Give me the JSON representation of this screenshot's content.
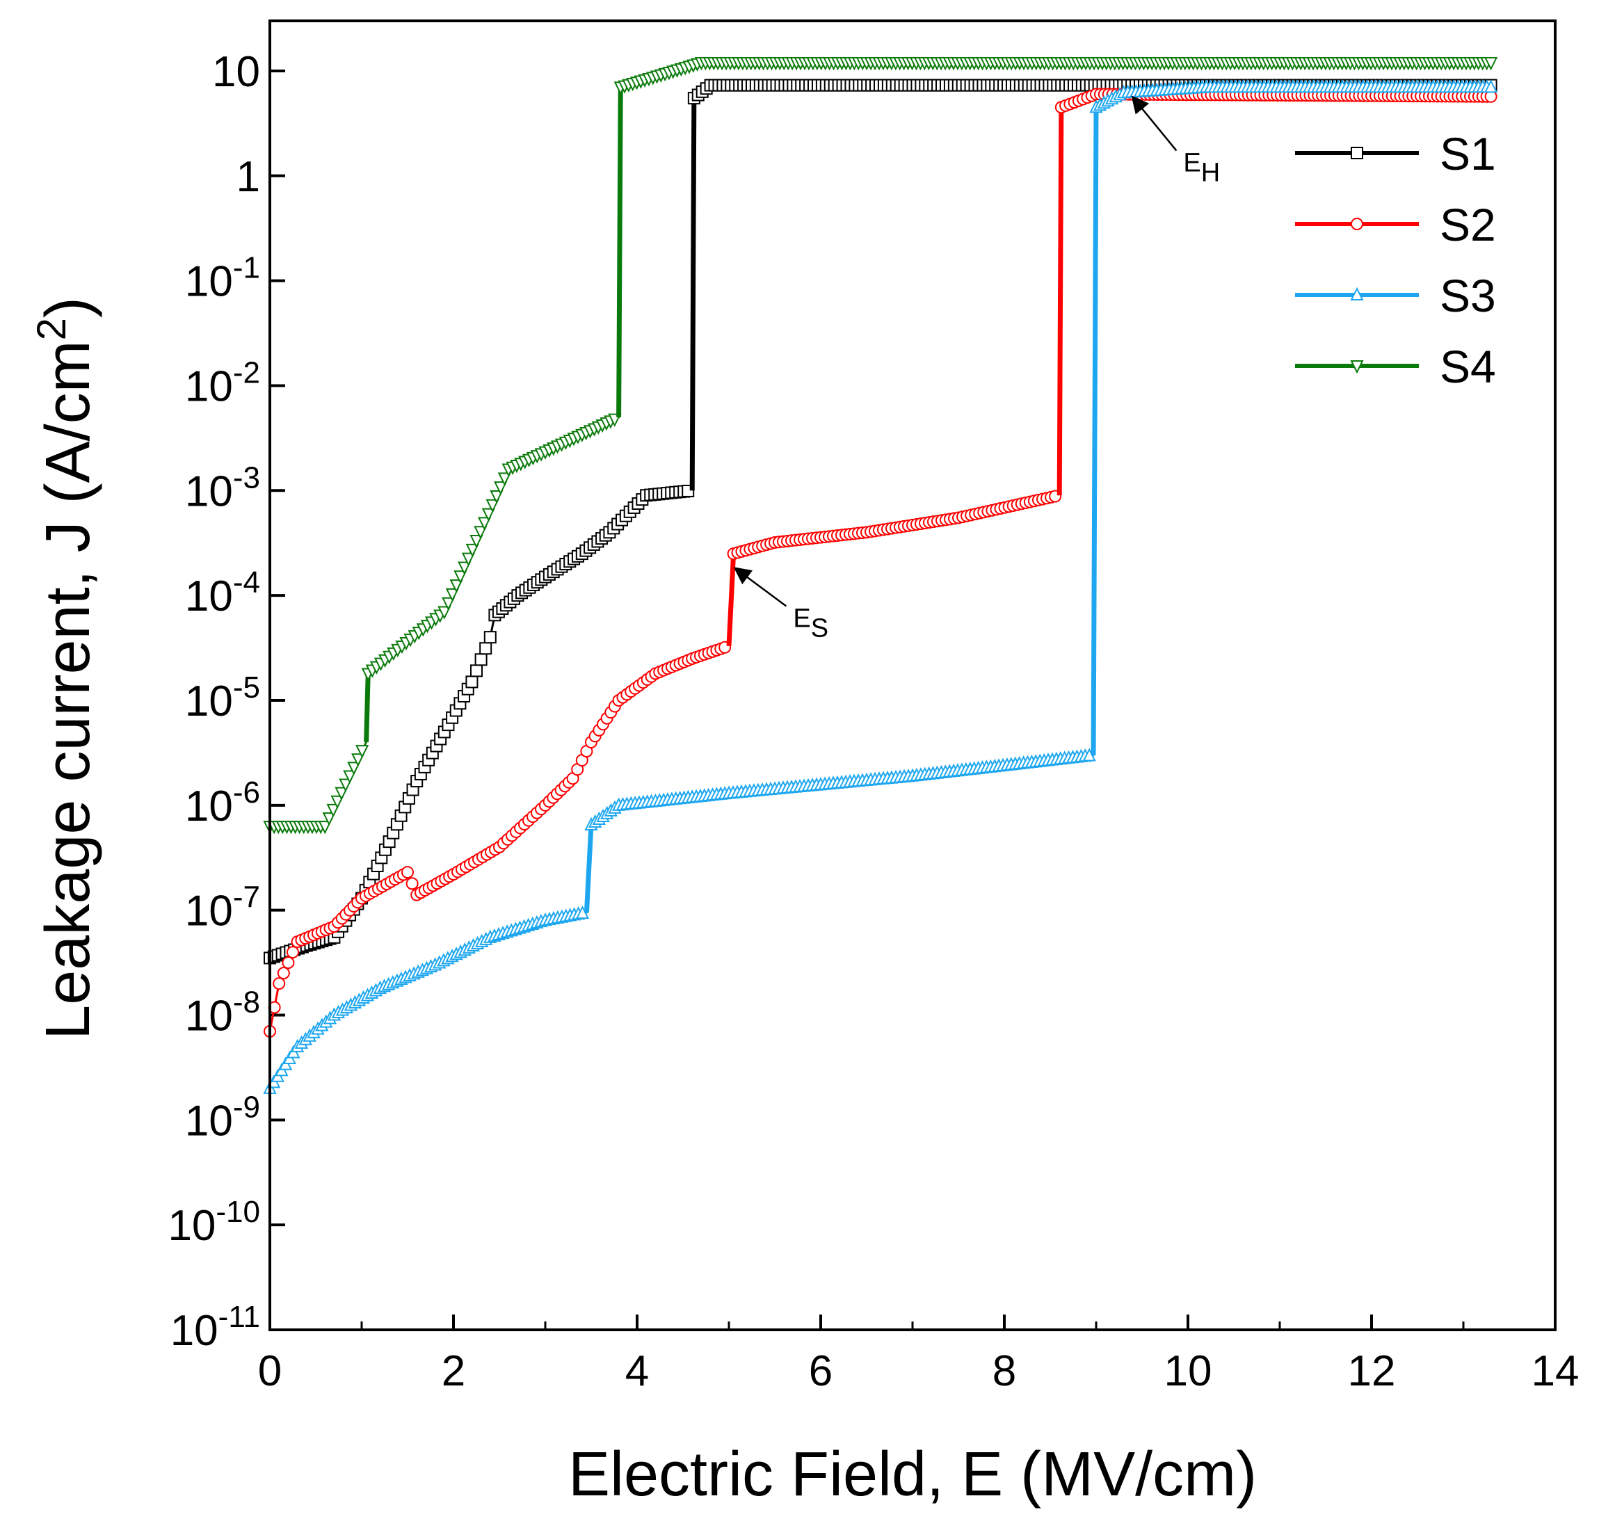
{
  "chart_data": {
    "type": "line",
    "title": "",
    "xlabel": "Electric Field, E (MV/cm)",
    "ylabel_prefix": "Leakage current, J (A/cm",
    "ylabel_sup": "2",
    "ylabel_suffix": ")",
    "xlim": [
      0,
      14
    ],
    "ylim": [
      1e-11,
      30
    ],
    "yscale": "log",
    "x_ticks": [
      0,
      2,
      4,
      6,
      8,
      10,
      12,
      14
    ],
    "x_tick_labels": [
      "0",
      "2",
      "4",
      "6",
      "8",
      "10",
      "12",
      "14"
    ],
    "y_ticks": [
      {
        "value": 10,
        "base": "10",
        "exp": ""
      },
      {
        "value": 1,
        "base": "1",
        "exp": ""
      },
      {
        "value": 0.1,
        "base": "10",
        "exp": "-1"
      },
      {
        "value": 0.01,
        "base": "10",
        "exp": "-2"
      },
      {
        "value": 0.001,
        "base": "10",
        "exp": "-3"
      },
      {
        "value": 0.0001,
        "base": "10",
        "exp": "-4"
      },
      {
        "value": 1e-05,
        "base": "10",
        "exp": "-5"
      },
      {
        "value": 1e-06,
        "base": "10",
        "exp": "-6"
      },
      {
        "value": 1e-07,
        "base": "10",
        "exp": "-7"
      },
      {
        "value": 1e-08,
        "base": "10",
        "exp": "-8"
      },
      {
        "value": 1e-09,
        "base": "10",
        "exp": "-9"
      },
      {
        "value": 1e-10,
        "base": "10",
        "exp": "-10"
      },
      {
        "value": 1e-11,
        "base": "10",
        "exp": "-11"
      }
    ],
    "legend_position": "top-right",
    "series": [
      {
        "name": "S1",
        "color": "#000000",
        "marker": "square",
        "points": [
          [
            0,
            3.5e-08
          ],
          [
            0.4,
            4.6e-08
          ],
          [
            0.7,
            5.5e-08
          ],
          [
            1.0,
            1.3e-07
          ],
          [
            1.3,
            4.5e-07
          ],
          [
            1.6,
            1.7e-06
          ],
          [
            1.9,
            5e-06
          ],
          [
            2.2,
            1.5e-05
          ],
          [
            2.4,
            4e-05
          ],
          [
            2.45,
            6.5e-05
          ],
          [
            2.7,
            0.0001
          ],
          [
            3.0,
            0.00015
          ],
          [
            3.4,
            0.00025
          ],
          [
            3.7,
            0.0004
          ],
          [
            4.1,
            0.0009
          ],
          [
            4.6,
            0.001
          ],
          [
            4.62,
            5.5
          ],
          [
            4.8,
            7.3
          ],
          [
            13.3,
            7.3
          ]
        ]
      },
      {
        "name": "S2",
        "color": "#ff0000",
        "marker": "circle",
        "points": [
          [
            0,
            7e-09
          ],
          [
            0.1,
            2e-08
          ],
          [
            0.3,
            5e-08
          ],
          [
            0.7,
            7e-08
          ],
          [
            1.0,
            1.3e-07
          ],
          [
            1.5,
            2.3e-07
          ],
          [
            1.6,
            1.4e-07
          ],
          [
            2.0,
            2.2e-07
          ],
          [
            2.5,
            4e-07
          ],
          [
            3.0,
            1e-06
          ],
          [
            3.3,
            1.8e-06
          ],
          [
            3.5,
            4e-06
          ],
          [
            3.8,
            1e-05
          ],
          [
            4.2,
            1.8e-05
          ],
          [
            4.6,
            2.5e-05
          ],
          [
            5.0,
            3.3e-05
          ],
          [
            5.05,
            0.00025
          ],
          [
            5.5,
            0.00032
          ],
          [
            6.5,
            0.0004
          ],
          [
            7.5,
            0.00055
          ],
          [
            8.6,
            0.0009
          ],
          [
            8.62,
            4.5
          ],
          [
            9.0,
            6
          ],
          [
            13.3,
            5.7
          ]
        ]
      },
      {
        "name": "S3",
        "color": "#1ea7f0",
        "marker": "triangle-up",
        "points": [
          [
            0,
            2e-09
          ],
          [
            0.3,
            5e-09
          ],
          [
            0.7,
            1e-08
          ],
          [
            1.2,
            1.8e-08
          ],
          [
            1.8,
            3e-08
          ],
          [
            2.4,
            5.5e-08
          ],
          [
            3.0,
            8e-08
          ],
          [
            3.45,
            9.5e-08
          ],
          [
            3.5,
            6.5e-07
          ],
          [
            3.8,
            1e-06
          ],
          [
            5,
            1.3e-06
          ],
          [
            7,
            1.9e-06
          ],
          [
            8.97,
            3e-06
          ],
          [
            9.0,
            4.5
          ],
          [
            9.3,
            6.2
          ],
          [
            10.2,
            7
          ],
          [
            13.3,
            7
          ]
        ]
      },
      {
        "name": "S4",
        "color": "#0a7a0a",
        "marker": "triangle-down",
        "points": [
          [
            0,
            6.3e-07
          ],
          [
            0.6,
            6.3e-07
          ],
          [
            1.05,
            4e-06
          ],
          [
            1.07,
            1.8e-05
          ],
          [
            1.9,
            7e-05
          ],
          [
            2.6,
            0.0016
          ],
          [
            3.8,
            0.005
          ],
          [
            3.82,
            7
          ],
          [
            4.7,
            12
          ],
          [
            13.3,
            12
          ]
        ]
      }
    ],
    "annotations": [
      {
        "base": "E",
        "sub": "S",
        "target": [
          5.02,
          0.0002
        ],
        "label_at": [
          5.7,
          5e-05
        ]
      },
      {
        "base": "E",
        "sub": "H",
        "target": [
          9.35,
          6.2
        ],
        "label_at": [
          9.95,
          1.1
        ]
      }
    ]
  }
}
